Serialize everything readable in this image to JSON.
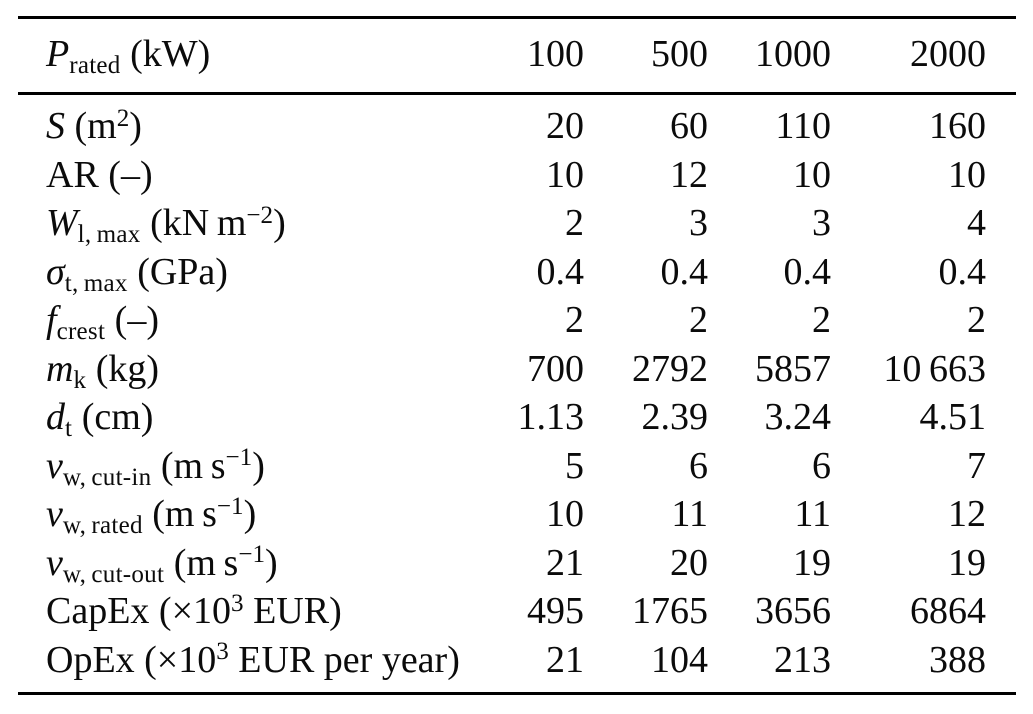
{
  "colors": {
    "background": "#ffffff",
    "text": "#0b0b0b",
    "rule": "#000000"
  },
  "table": {
    "header": {
      "label_parts": [
        {
          "t": "P",
          "s": "i"
        },
        {
          "t": "rated",
          "s": "sub"
        },
        {
          "t": " (kW)",
          "s": "n"
        }
      ],
      "values": [
        "100",
        "500",
        "1000",
        "2000"
      ]
    },
    "rows": [
      {
        "label_parts": [
          {
            "t": "S",
            "s": "i"
          },
          {
            "t": " (m",
            "s": "n"
          },
          {
            "t": "2",
            "s": "sup"
          },
          {
            "t": ")",
            "s": "n"
          }
        ],
        "values": [
          "20",
          "60",
          "110",
          "160"
        ]
      },
      {
        "label_parts": [
          {
            "t": "AR (–)",
            "s": "n"
          }
        ],
        "values": [
          "10",
          "12",
          "10",
          "10"
        ]
      },
      {
        "label_parts": [
          {
            "t": "W",
            "s": "i"
          },
          {
            "t": "l, max",
            "s": "sub"
          },
          {
            "t": " (kN m",
            "s": "n"
          },
          {
            "t": "−2",
            "s": "sup"
          },
          {
            "t": ")",
            "s": "n"
          }
        ],
        "values": [
          "2",
          "3",
          "3",
          "4"
        ]
      },
      {
        "label_parts": [
          {
            "t": "σ",
            "s": "i"
          },
          {
            "t": "t, max",
            "s": "sub"
          },
          {
            "t": " (GPa)",
            "s": "n"
          }
        ],
        "values": [
          "0.4",
          "0.4",
          "0.4",
          "0.4"
        ]
      },
      {
        "label_parts": [
          {
            "t": "f",
            "s": "i"
          },
          {
            "t": "crest",
            "s": "sub"
          },
          {
            "t": " (–)",
            "s": "n"
          }
        ],
        "values": [
          "2",
          "2",
          "2",
          "2"
        ]
      },
      {
        "label_parts": [
          {
            "t": "m",
            "s": "i"
          },
          {
            "t": "k",
            "s": "sub"
          },
          {
            "t": " (kg)",
            "s": "n"
          }
        ],
        "values": [
          "700",
          "2792",
          "5857",
          "10 663"
        ]
      },
      {
        "label_parts": [
          {
            "t": "d",
            "s": "i"
          },
          {
            "t": "t",
            "s": "sub"
          },
          {
            "t": " (cm)",
            "s": "n"
          }
        ],
        "values": [
          "1.13",
          "2.39",
          "3.24",
          "4.51"
        ]
      },
      {
        "label_parts": [
          {
            "t": "v",
            "s": "i"
          },
          {
            "t": "w, cut-in",
            "s": "sub"
          },
          {
            "t": " (m s",
            "s": "n"
          },
          {
            "t": "−1",
            "s": "sup"
          },
          {
            "t": ")",
            "s": "n"
          }
        ],
        "values": [
          "5",
          "6",
          "6",
          "7"
        ]
      },
      {
        "label_parts": [
          {
            "t": "v",
            "s": "i"
          },
          {
            "t": "w, rated",
            "s": "sub"
          },
          {
            "t": " (m s",
            "s": "n"
          },
          {
            "t": "−1",
            "s": "sup"
          },
          {
            "t": ")",
            "s": "n"
          }
        ],
        "values": [
          "10",
          "11",
          "11",
          "12"
        ]
      },
      {
        "label_parts": [
          {
            "t": "v",
            "s": "i"
          },
          {
            "t": "w, cut-out",
            "s": "sub"
          },
          {
            "t": " (m s",
            "s": "n"
          },
          {
            "t": "−1",
            "s": "sup"
          },
          {
            "t": ")",
            "s": "n"
          }
        ],
        "values": [
          "21",
          "20",
          "19",
          "19"
        ]
      },
      {
        "label_parts": [
          {
            "t": "CapEx (×10",
            "s": "n"
          },
          {
            "t": "3",
            "s": "sup"
          },
          {
            "t": " EUR)",
            "s": "n"
          }
        ],
        "values": [
          "495",
          "1765",
          "3656",
          "6864"
        ]
      },
      {
        "label_parts": [
          {
            "t": "OpEx (×10",
            "s": "n"
          },
          {
            "t": "3",
            "s": "sup"
          },
          {
            "t": " EUR per year)",
            "s": "n"
          }
        ],
        "values": [
          "21",
          "104",
          "213",
          "388"
        ]
      }
    ]
  },
  "chart_data": {
    "type": "table",
    "columns": [
      "P_rated (kW)",
      "100",
      "500",
      "1000",
      "2000"
    ],
    "rows": [
      {
        "parameter": "S (m^2)",
        "values": [
          20,
          60,
          110,
          160
        ]
      },
      {
        "parameter": "AR (-)",
        "values": [
          10,
          12,
          10,
          10
        ]
      },
      {
        "parameter": "W_l,max (kN m^-2)",
        "values": [
          2,
          3,
          3,
          4
        ]
      },
      {
        "parameter": "sigma_t,max (GPa)",
        "values": [
          0.4,
          0.4,
          0.4,
          0.4
        ]
      },
      {
        "parameter": "f_crest (-)",
        "values": [
          2,
          2,
          2,
          2
        ]
      },
      {
        "parameter": "m_k (kg)",
        "values": [
          700,
          2792,
          5857,
          10663
        ]
      },
      {
        "parameter": "d_t (cm)",
        "values": [
          1.13,
          2.39,
          3.24,
          4.51
        ]
      },
      {
        "parameter": "v_w,cut-in (m s^-1)",
        "values": [
          5,
          6,
          6,
          7
        ]
      },
      {
        "parameter": "v_w,rated (m s^-1)",
        "values": [
          10,
          11,
          11,
          12
        ]
      },
      {
        "parameter": "v_w,cut-out (m s^-1)",
        "values": [
          21,
          20,
          19,
          19
        ]
      },
      {
        "parameter": "CapEx (x10^3 EUR)",
        "values": [
          495,
          1765,
          3656,
          6864
        ]
      },
      {
        "parameter": "OpEx (x10^3 EUR per year)",
        "values": [
          21,
          104,
          213,
          388
        ]
      }
    ]
  }
}
